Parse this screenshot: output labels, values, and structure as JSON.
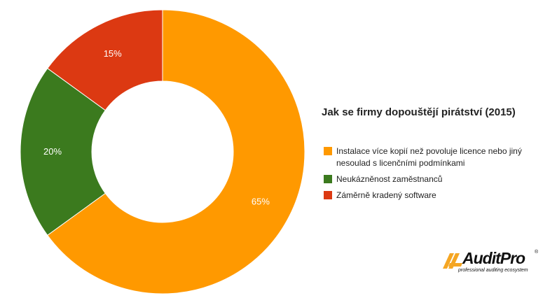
{
  "chart_data": {
    "type": "pie",
    "donut": true,
    "title": "Jak se firmy dopouštějí pirátství (2015)",
    "legend_position": "right",
    "slices": [
      {
        "label": "Instalace více kopií než povoluje licence nebo jiný nesoulad s licenčními podmínkami",
        "value": 65,
        "display": "65%",
        "color": "#ff9900"
      },
      {
        "label": "Neukázněnost zaměstnanců",
        "value": 20,
        "display": "20%",
        "color": "#3b7a1e"
      },
      {
        "label": "Záměrně kradený software",
        "value": 15,
        "display": "15%",
        "color": "#dc3912"
      }
    ]
  },
  "logo": {
    "name": "AuditPro",
    "registered": "®",
    "tagline": "professional auditing ecosystem",
    "colors": {
      "mark": "#f5a623",
      "text": "#111111"
    }
  }
}
